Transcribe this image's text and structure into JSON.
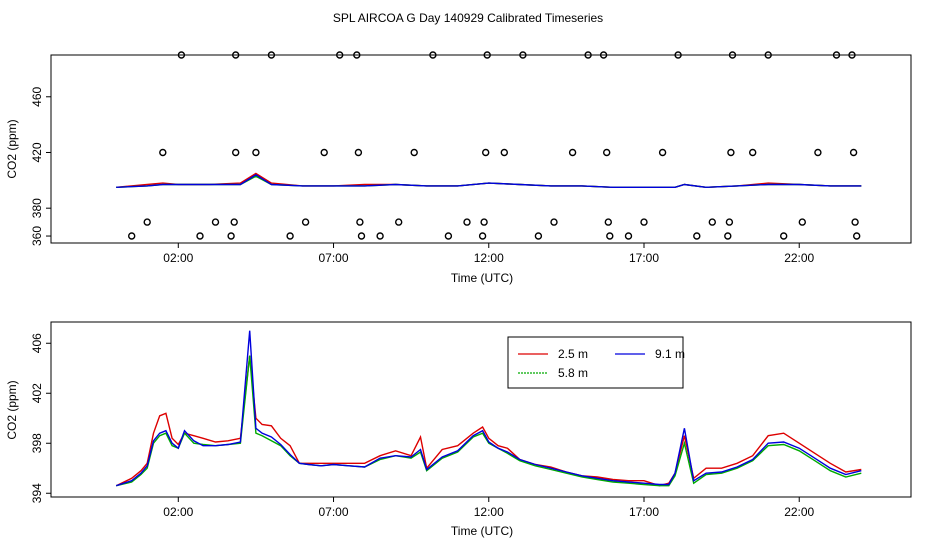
{
  "title": "SPL AIRCOA G  Day 140929  Calibrated Timeseries",
  "colors": {
    "red": "#dd0000",
    "green": "#00aa00",
    "blue": "#0000dd",
    "axis": "#000000"
  },
  "chart_data": [
    {
      "type": "scatter",
      "title": "SPL AIRCOA G  Day 140929  Calibrated Timeseries",
      "xlabel": "Time (UTC)",
      "ylabel": "CO2 (ppm)",
      "xlim": [
        -2.1,
        25.6
      ],
      "ylim": [
        355,
        490
      ],
      "xticks": [
        2,
        7,
        12,
        17,
        22
      ],
      "xtick_labels": [
        "02:00",
        "07:00",
        "12:00",
        "17:00",
        "22:00"
      ],
      "yticks": [
        380,
        420,
        460
      ],
      "ytick_labels": [
        "380",
        "420",
        "460"
      ],
      "y_tick_positions": [
        360,
        380,
        420,
        460
      ],
      "y_tick_labels_all": [
        "360",
        "380",
        "420",
        "460"
      ],
      "points": [
        [
          0.5,
          360
        ],
        [
          1.0,
          370
        ],
        [
          1.5,
          420
        ],
        [
          2.1,
          490
        ],
        [
          2.7,
          360
        ],
        [
          3.2,
          370
        ],
        [
          3.7,
          360
        ],
        [
          3.8,
          370
        ],
        [
          3.85,
          420
        ],
        [
          3.85,
          490
        ],
        [
          4.5,
          420
        ],
        [
          5.0,
          490
        ],
        [
          5.6,
          360
        ],
        [
          6.1,
          370
        ],
        [
          6.7,
          420
        ],
        [
          7.2,
          490
        ],
        [
          7.75,
          490
        ],
        [
          7.8,
          420
        ],
        [
          7.85,
          370
        ],
        [
          7.9,
          360
        ],
        [
          8.5,
          360
        ],
        [
          9.1,
          370
        ],
        [
          9.6,
          420
        ],
        [
          10.2,
          490
        ],
        [
          10.7,
          360
        ],
        [
          11.3,
          370
        ],
        [
          11.8,
          360
        ],
        [
          11.85,
          370
        ],
        [
          11.9,
          420
        ],
        [
          11.95,
          490
        ],
        [
          12.5,
          420
        ],
        [
          13.1,
          490
        ],
        [
          13.6,
          360
        ],
        [
          14.1,
          370
        ],
        [
          14.7,
          420
        ],
        [
          15.2,
          490
        ],
        [
          15.7,
          490
        ],
        [
          15.8,
          420
        ],
        [
          15.85,
          370
        ],
        [
          15.9,
          360
        ],
        [
          16.5,
          360
        ],
        [
          17.0,
          370
        ],
        [
          17.6,
          420
        ],
        [
          18.1,
          490
        ],
        [
          18.7,
          360
        ],
        [
          19.2,
          370
        ],
        [
          19.7,
          360
        ],
        [
          19.75,
          370
        ],
        [
          19.8,
          420
        ],
        [
          19.85,
          490
        ],
        [
          20.5,
          420
        ],
        [
          21.0,
          490
        ],
        [
          21.5,
          360
        ],
        [
          22.1,
          370
        ],
        [
          22.6,
          420
        ],
        [
          23.2,
          490
        ],
        [
          23.7,
          490
        ],
        [
          23.75,
          420
        ],
        [
          23.8,
          370
        ],
        [
          23.85,
          360
        ]
      ],
      "series": [
        {
          "name": "2.5 m",
          "color": "#dd0000",
          "x": [
            0,
            1,
            1.5,
            2,
            3,
            4,
            4.5,
            5,
            6,
            7,
            8,
            9,
            10,
            11,
            12,
            13,
            14,
            15,
            16,
            17,
            18,
            18.3,
            19,
            20,
            21,
            22,
            23,
            24
          ],
          "values": [
            395,
            397,
            398,
            397,
            397,
            398,
            405,
            398,
            396,
            396,
            397,
            397,
            396,
            396,
            398,
            397,
            396,
            396,
            395,
            395,
            395,
            397,
            395,
            396,
            398,
            397,
            396,
            396
          ]
        },
        {
          "name": "5.8 m",
          "color": "#00aa00",
          "x": [
            0,
            1,
            1.5,
            2,
            3,
            4,
            4.5,
            5,
            6,
            7,
            8,
            9,
            10,
            11,
            12,
            13,
            14,
            15,
            16,
            17,
            18,
            18.3,
            19,
            20,
            21,
            22,
            23,
            24
          ],
          "values": [
            395,
            396,
            397,
            397,
            397,
            397,
            403,
            397,
            396,
            396,
            396,
            397,
            396,
            396,
            398,
            397,
            396,
            396,
            395,
            395,
            395,
            397,
            395,
            396,
            397,
            397,
            396,
            396
          ]
        },
        {
          "name": "9.1 m",
          "color": "#0000dd",
          "x": [
            0,
            1,
            1.5,
            2,
            3,
            4,
            4.5,
            5,
            6,
            7,
            8,
            9,
            10,
            11,
            12,
            13,
            14,
            15,
            16,
            17,
            18,
            18.3,
            19,
            20,
            21,
            22,
            23,
            24
          ],
          "values": [
            395,
            396,
            397,
            397,
            397,
            397,
            404,
            397,
            396,
            396,
            396,
            397,
            396,
            396,
            398,
            397,
            396,
            396,
            395,
            395,
            395,
            397,
            395,
            396,
            397,
            397,
            396,
            396
          ]
        }
      ]
    },
    {
      "type": "line",
      "xlabel": "Time (UTC)",
      "ylabel": "CO2 (ppm)",
      "xlim": [
        -2.1,
        25.6
      ],
      "ylim": [
        393.7,
        407.7
      ],
      "xticks": [
        2,
        7,
        12,
        17,
        22
      ],
      "xtick_labels": [
        "02:00",
        "07:00",
        "12:00",
        "17:00",
        "22:00"
      ],
      "yticks": [
        394,
        398,
        402,
        406
      ],
      "ytick_labels": [
        "394",
        "398",
        "402",
        "406"
      ],
      "legend_position": "top-center",
      "series": [
        {
          "name": "2.5 m",
          "color": "#dd0000",
          "x": [
            0,
            0.5,
            0.8,
            1.0,
            1.2,
            1.4,
            1.6,
            1.8,
            2.0,
            2.2,
            2.5,
            2.8,
            3.2,
            3.6,
            4.0,
            4.3,
            4.5,
            4.7,
            5.0,
            5.3,
            5.6,
            5.9,
            6.2,
            6.6,
            7.0,
            7.5,
            8.0,
            8.5,
            9.0,
            9.5,
            9.8,
            10.0,
            10.5,
            11.0,
            11.5,
            11.8,
            12.0,
            12.3,
            12.6,
            13.0,
            13.5,
            14.0,
            14.5,
            15.0,
            15.5,
            16.0,
            16.5,
            17.0,
            17.5,
            17.8,
            18.0,
            18.3,
            18.6,
            19.0,
            19.5,
            20.0,
            20.5,
            21.0,
            21.5,
            22.0,
            22.5,
            23.0,
            23.5,
            24.0
          ],
          "values": [
            394.6,
            395.2,
            395.8,
            396.4,
            398.8,
            400.2,
            400.4,
            398.4,
            397.9,
            398.8,
            398.6,
            398.4,
            398.1,
            398.2,
            398.4,
            405.0,
            400.0,
            399.5,
            399.4,
            398.4,
            397.8,
            396.4,
            396.4,
            396.4,
            396.4,
            396.4,
            396.4,
            397.0,
            397.4,
            397.0,
            398.5,
            396.0,
            397.5,
            397.8,
            398.8,
            399.3,
            398.4,
            397.8,
            397.6,
            396.7,
            396.3,
            396.1,
            395.7,
            395.4,
            395.3,
            395.1,
            395.0,
            395.0,
            394.6,
            394.8,
            395.6,
            398.6,
            395.2,
            396.0,
            396.0,
            396.4,
            397.0,
            398.6,
            398.8,
            398.0,
            397.2,
            396.4,
            395.7,
            395.9
          ]
        },
        {
          "name": "5.8 m",
          "color": "#00aa00",
          "x": [
            0,
            0.5,
            0.8,
            1.0,
            1.2,
            1.4,
            1.6,
            1.8,
            2.0,
            2.2,
            2.5,
            2.8,
            3.2,
            3.6,
            4.0,
            4.3,
            4.5,
            4.7,
            5.0,
            5.3,
            5.6,
            5.9,
            6.2,
            6.6,
            7.0,
            7.5,
            8.0,
            8.5,
            9.0,
            9.5,
            9.8,
            10.0,
            10.5,
            11.0,
            11.5,
            11.8,
            12.0,
            12.3,
            12.6,
            13.0,
            13.5,
            14.0,
            14.5,
            15.0,
            15.5,
            16.0,
            16.5,
            17.0,
            17.5,
            17.8,
            18.0,
            18.3,
            18.6,
            19.0,
            19.5,
            20.0,
            20.5,
            21.0,
            21.5,
            22.0,
            22.5,
            23.0,
            23.5,
            24.0
          ],
          "values": [
            394.6,
            394.9,
            395.5,
            396.0,
            398.0,
            398.6,
            398.8,
            397.8,
            397.6,
            398.8,
            398.0,
            397.9,
            397.8,
            397.9,
            398.0,
            405.0,
            398.8,
            398.6,
            398.2,
            397.8,
            397.0,
            396.4,
            396.3,
            396.2,
            396.3,
            396.2,
            396.1,
            396.7,
            397.0,
            396.8,
            397.3,
            395.8,
            396.8,
            397.3,
            398.5,
            398.8,
            398.0,
            397.6,
            397.2,
            396.6,
            396.2,
            395.9,
            395.6,
            395.3,
            395.1,
            394.9,
            394.8,
            394.7,
            394.6,
            394.6,
            395.4,
            398.0,
            394.8,
            395.5,
            395.6,
            396.0,
            396.6,
            397.8,
            397.9,
            397.4,
            396.6,
            395.8,
            395.3,
            395.6
          ]
        },
        {
          "name": "9.1 m",
          "color": "#0000dd",
          "x": [
            0,
            0.5,
            0.8,
            1.0,
            1.2,
            1.4,
            1.6,
            1.8,
            2.0,
            2.2,
            2.5,
            2.8,
            3.2,
            3.6,
            4.0,
            4.3,
            4.5,
            4.7,
            5.0,
            5.3,
            5.6,
            5.9,
            6.2,
            6.6,
            7.0,
            7.5,
            8.0,
            8.5,
            9.0,
            9.5,
            9.8,
            10.0,
            10.5,
            11.0,
            11.5,
            11.8,
            12.0,
            12.3,
            12.6,
            13.0,
            13.5,
            14.0,
            14.5,
            15.0,
            15.5,
            16.0,
            16.5,
            17.0,
            17.5,
            17.8,
            18.0,
            18.3,
            18.6,
            19.0,
            19.5,
            20.0,
            20.5,
            21.0,
            21.5,
            22.0,
            22.5,
            23.0,
            23.5,
            24.0
          ],
          "values": [
            394.6,
            395.0,
            395.6,
            396.2,
            398.2,
            398.8,
            399.0,
            398.0,
            397.6,
            399.0,
            398.2,
            397.8,
            397.8,
            397.9,
            398.1,
            407.0,
            399.2,
            398.8,
            398.5,
            397.9,
            397.1,
            396.4,
            396.3,
            396.2,
            396.3,
            396.2,
            396.1,
            396.8,
            397.0,
            396.9,
            397.5,
            395.9,
            396.9,
            397.4,
            398.6,
            399.0,
            398.1,
            397.6,
            397.3,
            396.7,
            396.3,
            396.0,
            395.7,
            395.4,
            395.2,
            395.0,
            394.9,
            394.8,
            394.7,
            394.7,
            395.6,
            399.2,
            395.0,
            395.6,
            395.7,
            396.1,
            396.7,
            398.0,
            398.1,
            397.6,
            396.8,
            396.0,
            395.5,
            395.8
          ]
        }
      ]
    }
  ]
}
